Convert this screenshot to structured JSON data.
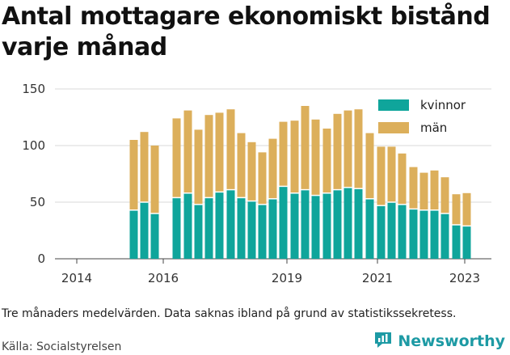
{
  "title": "Antal mottagare ekonomiskt bistånd varje månad",
  "note": "Tre månaders medelvärden. Data saknas ibland på grund av statistikssekretess.",
  "source": "Källa: Socialstyrelsen",
  "brand": {
    "name": "Newsworthy",
    "icon": "newsworthy-logo-icon",
    "color": "#1d9aa4"
  },
  "chart_data": {
    "type": "bar",
    "stacked": true,
    "title": "Antal mottagare ekonomiskt bistånd varje månad",
    "xlabel": "",
    "ylabel": "",
    "ylim": [
      0,
      150
    ],
    "yticks": [
      0,
      50,
      100,
      150
    ],
    "xticks": [
      "2014",
      "2016",
      "2019",
      "2021",
      "2023"
    ],
    "grid": true,
    "legend_position": "top-right",
    "categories": [
      "2015 Q3",
      "2015 Q4",
      "2016 Q1",
      "2016 Q3",
      "2016 Q4",
      "2017 Q1",
      "2017 Q2",
      "2017 Q3",
      "2017 Q4",
      "2018 Q1",
      "2018 Q2",
      "2018 Q3",
      "2018 Q4",
      "2019 Q1",
      "2019 Q2",
      "2019 Q3",
      "2019 Q4",
      "2020 Q1",
      "2020 Q2",
      "2020 Q3",
      "2020 Q4",
      "2021 Q1",
      "2021 Q2",
      "2021 Q3",
      "2021 Q4",
      "2022 Q1",
      "2022 Q2",
      "2022 Q3",
      "2022 Q4",
      "2023 Q1",
      "2023 Q2"
    ],
    "series": [
      {
        "name": "kvinnor",
        "color": "#0fa59b",
        "values": [
          43,
          50,
          40,
          54,
          58,
          48,
          54,
          59,
          61,
          54,
          51,
          48,
          53,
          64,
          58,
          61,
          56,
          58,
          61,
          63,
          62,
          53,
          47,
          50,
          48,
          44,
          43,
          43,
          40,
          30,
          29
        ]
      },
      {
        "name": "män",
        "color": "#dcaf5b",
        "values": [
          62,
          62,
          60,
          70,
          73,
          66,
          73,
          70,
          71,
          57,
          52,
          46,
          53,
          57,
          64,
          74,
          67,
          57,
          67,
          68,
          70,
          58,
          52,
          49,
          45,
          37,
          33,
          35,
          32,
          27,
          29
        ]
      }
    ]
  }
}
